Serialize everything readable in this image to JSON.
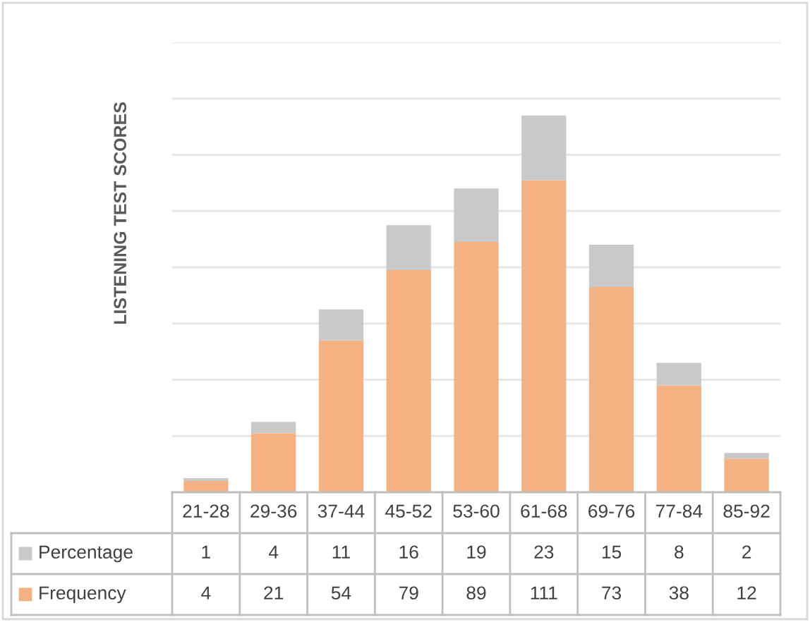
{
  "chart_data": {
    "type": "bar",
    "stacked": true,
    "ylabel": "LISTENING TEST SCORES",
    "categories": [
      "21-28",
      "29-36",
      "37-44",
      "45-52",
      "53-60",
      "61-68",
      "69-76",
      "77-84",
      "85-92"
    ],
    "series": [
      {
        "name": "Frequency",
        "color": "#f4b183",
        "values": [
          4,
          21,
          54,
          79,
          89,
          111,
          73,
          38,
          12
        ]
      },
      {
        "name": "Percentage",
        "color": "#c9c9c9",
        "values": [
          1,
          4,
          11,
          16,
          19,
          23,
          15,
          8,
          2
        ]
      }
    ],
    "ylim": [
      0,
      160
    ],
    "yticks": [
      {
        "value": 20,
        "label": null
      },
      {
        "value": 40,
        "label": null
      },
      {
        "value": 60,
        "label": null
      },
      {
        "value": 80,
        "label": null
      },
      {
        "value": 100,
        "label": null
      },
      {
        "value": 120,
        "label": null
      },
      {
        "value": 140,
        "label": null
      },
      {
        "value": 160,
        "label": null
      }
    ],
    "grid": "y",
    "data_labels": true,
    "tick_labels": false,
    "legend": "bottom left"
  }
}
